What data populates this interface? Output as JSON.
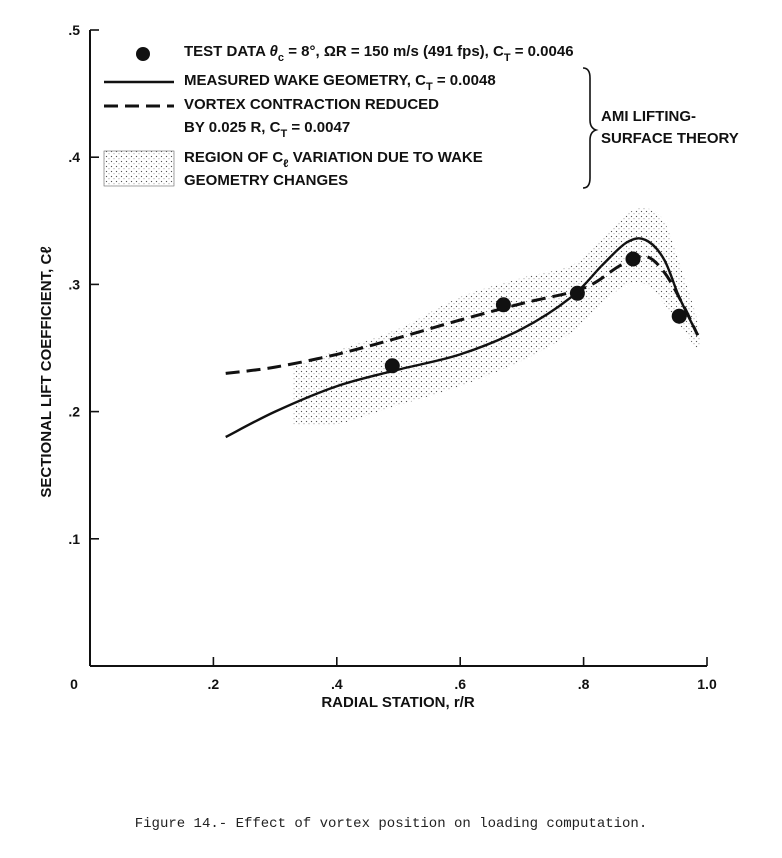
{
  "chart_data": {
    "type": "line",
    "xlabel": "RADIAL STATION, r/R",
    "ylabel": "SECTIONAL LIFT COEFFICIENT, Cℓ",
    "xlim": [
      0,
      1.0
    ],
    "ylim": [
      0,
      0.5
    ],
    "x_ticks": [
      {
        "value": 0,
        "label": "0"
      },
      {
        "value": 0.2,
        "label": ".2"
      },
      {
        "value": 0.4,
        "label": ".4"
      },
      {
        "value": 0.6,
        "label": ".6"
      },
      {
        "value": 0.8,
        "label": ".8"
      },
      {
        "value": 1.0,
        "label": "1.0"
      }
    ],
    "y_ticks": [
      {
        "value": 0.1,
        "label": ".1"
      },
      {
        "value": 0.2,
        "label": ".2"
      },
      {
        "value": 0.3,
        "label": ".3"
      },
      {
        "value": 0.4,
        "label": ".4"
      },
      {
        "value": 0.5,
        "label": ".5"
      }
    ],
    "test_data": {
      "label": "TEST DATA",
      "x": [
        0.49,
        0.67,
        0.79,
        0.88,
        0.955
      ],
      "y": [
        0.236,
        0.284,
        0.293,
        0.32,
        0.275
      ]
    },
    "series": [
      {
        "label_lines": [
          "MEASURED WAKE GEOMETRY, C",
          "T",
          " = 0.0048"
        ],
        "style": "solid",
        "x": [
          0.22,
          0.3,
          0.4,
          0.5,
          0.6,
          0.7,
          0.78,
          0.83,
          0.87,
          0.9,
          0.93,
          0.955,
          0.985
        ],
        "y": [
          0.18,
          0.2,
          0.22,
          0.233,
          0.245,
          0.265,
          0.29,
          0.315,
          0.333,
          0.335,
          0.32,
          0.29,
          0.26
        ]
      },
      {
        "label_lines": [
          "VORTEX CONTRACTION REDUCED",
          "BY 0.025 R, C",
          "T",
          " = 0.0047"
        ],
        "style": "dashed",
        "x": [
          0.22,
          0.3,
          0.4,
          0.5,
          0.6,
          0.7,
          0.8,
          0.86,
          0.9,
          0.93,
          0.96,
          0.985
        ],
        "y": [
          0.23,
          0.235,
          0.245,
          0.258,
          0.272,
          0.285,
          0.297,
          0.315,
          0.322,
          0.31,
          0.285,
          0.26
        ]
      }
    ],
    "region": {
      "label_line1_pre": "REGION OF C",
      "label_line1_sub": "ℓ",
      "label_line1_post": " VARIATION DUE TO WAKE",
      "label_line2": "GEOMETRY CHANGES",
      "upper": {
        "x": [
          0.33,
          0.4,
          0.5,
          0.6,
          0.7,
          0.78,
          0.83,
          0.87,
          0.9,
          0.93,
          0.96,
          0.985
        ],
        "y": [
          0.235,
          0.248,
          0.265,
          0.29,
          0.305,
          0.315,
          0.335,
          0.355,
          0.36,
          0.35,
          0.31,
          0.27
        ]
      },
      "lower": {
        "x": [
          0.985,
          0.96,
          0.93,
          0.9,
          0.87,
          0.83,
          0.78,
          0.7,
          0.6,
          0.5,
          0.4,
          0.33
        ],
        "y": [
          0.25,
          0.265,
          0.285,
          0.3,
          0.3,
          0.285,
          0.262,
          0.24,
          0.22,
          0.205,
          0.19,
          0.19
        ]
      }
    },
    "legend": {
      "test_data_line": {
        "pre": "TEST DATA  ",
        "theta": "θ",
        "theta_sub": "c",
        "mid": " = 8°, ΩR = 150 m/s (491 fps), C",
        "ct_sub": "T",
        "post": " = 0.0046"
      },
      "bracket_label": [
        "AMI LIFTING-",
        "SURFACE THEORY"
      ],
      "placement": "top-left"
    },
    "caption": "Figure 14.- Effect of vortex position on loading computation."
  }
}
